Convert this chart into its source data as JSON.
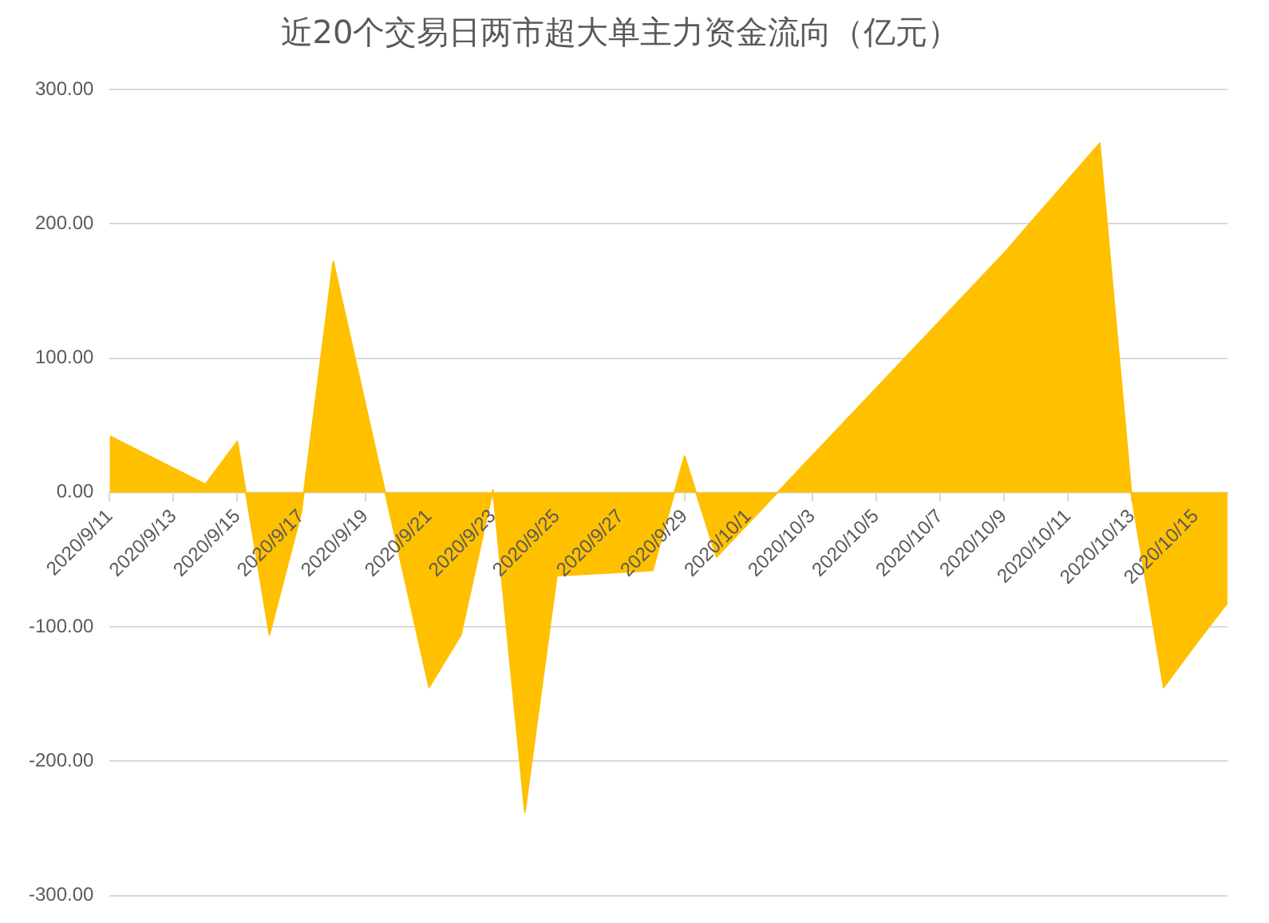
{
  "chart_data": {
    "type": "area",
    "title": "近20个交易日两市超大单主力资金流向（亿元）",
    "x": [
      "2020-09-11",
      "2020-09-14",
      "2020-09-15",
      "2020-09-16",
      "2020-09-17",
      "2020-09-18",
      "2020-09-21",
      "2020-09-22",
      "2020-09-23",
      "2020-09-24",
      "2020-09-25",
      "2020-09-28",
      "2020-09-29",
      "2020-09-30",
      "2020-10-09",
      "2020-10-12",
      "2020-10-13",
      "2020-10-14",
      "2020-10-15",
      "2020-10-16"
    ],
    "series": [
      {
        "color": "#ffc000",
        "values": [
          42,
          6,
          38,
          -106,
          -15,
          172,
          -145,
          -106,
          2,
          -238,
          -62,
          -58,
          27,
          -48,
          178,
          260,
          -3,
          -145,
          -113,
          -82
        ]
      }
    ],
    "xlim": [
      "2020-09-11",
      "2020-10-16"
    ],
    "xticks": [
      {
        "value": "2020-09-11",
        "label": "2020/9/11"
      },
      {
        "value": "2020-09-13",
        "label": "2020/9/13"
      },
      {
        "value": "2020-09-15",
        "label": "2020/9/15"
      },
      {
        "value": "2020-09-17",
        "label": "2020/9/17"
      },
      {
        "value": "2020-09-19",
        "label": "2020/9/19"
      },
      {
        "value": "2020-09-21",
        "label": "2020/9/21"
      },
      {
        "value": "2020-09-23",
        "label": "2020/9/23"
      },
      {
        "value": "2020-09-25",
        "label": "2020/9/25"
      },
      {
        "value": "2020-09-27",
        "label": "2020/9/27"
      },
      {
        "value": "2020-09-29",
        "label": "2020/9/29"
      },
      {
        "value": "2020-10-01",
        "label": "2020/10/1"
      },
      {
        "value": "2020-10-03",
        "label": "2020/10/3"
      },
      {
        "value": "2020-10-05",
        "label": "2020/10/5"
      },
      {
        "value": "2020-10-07",
        "label": "2020/10/7"
      },
      {
        "value": "2020-10-09",
        "label": "2020/10/9"
      },
      {
        "value": "2020-10-11",
        "label": "2020/10/11"
      },
      {
        "value": "2020-10-13",
        "label": "2020/10/13"
      },
      {
        "value": "2020-10-15",
        "label": "2020/10/15"
      }
    ],
    "ylim": [
      -300,
      300
    ],
    "yticks": [
      {
        "value": -300,
        "label": "-300.00"
      },
      {
        "value": -200,
        "label": "-200.00"
      },
      {
        "value": -100,
        "label": "-100.00"
      },
      {
        "value": 0,
        "label": "0.00"
      },
      {
        "value": 100,
        "label": "100.00"
      },
      {
        "value": 200,
        "label": "200.00"
      },
      {
        "value": 300,
        "label": "300.00"
      }
    ],
    "grid": "y",
    "legend": false
  }
}
